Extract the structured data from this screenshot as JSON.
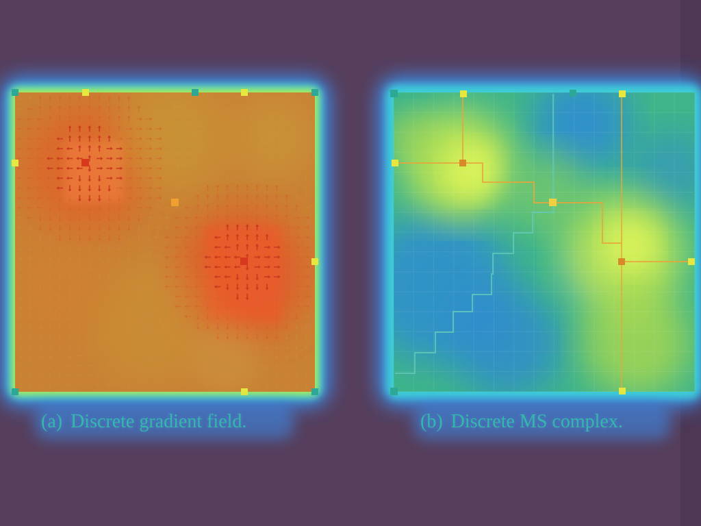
{
  "figure": {
    "panels": [
      {
        "id": "a",
        "label": "(a)",
        "caption": "Discrete gradient field.",
        "arrows": [
          {
            "row": 0,
            "col": 0,
            "dir": "up"
          }
        ]
      },
      {
        "id": "b",
        "label": "(b)",
        "caption": "Discrete MS complex."
      }
    ]
  },
  "colors": {
    "background": "#563e5c",
    "glow_outer": "#3a8ff0",
    "glow_mid": "#3ccfd6",
    "glow_inner": "#b8f04a",
    "heat_orange": "#e0702e",
    "heat_red": "#f0502a",
    "heat_yellow": "#d6c83a",
    "field_green": "#5fd27a",
    "field_blue": "#2e8ed0",
    "field_yellow": "#d8ef52",
    "arc_orange": "#e8a53a",
    "arc_teal": "#5ec8b6",
    "node_yellow": "#f0e040",
    "node_orange": "#f0a030",
    "node_red": "#e04820",
    "node_teal": "#2ea896",
    "caption_text": "#35b8aa"
  }
}
